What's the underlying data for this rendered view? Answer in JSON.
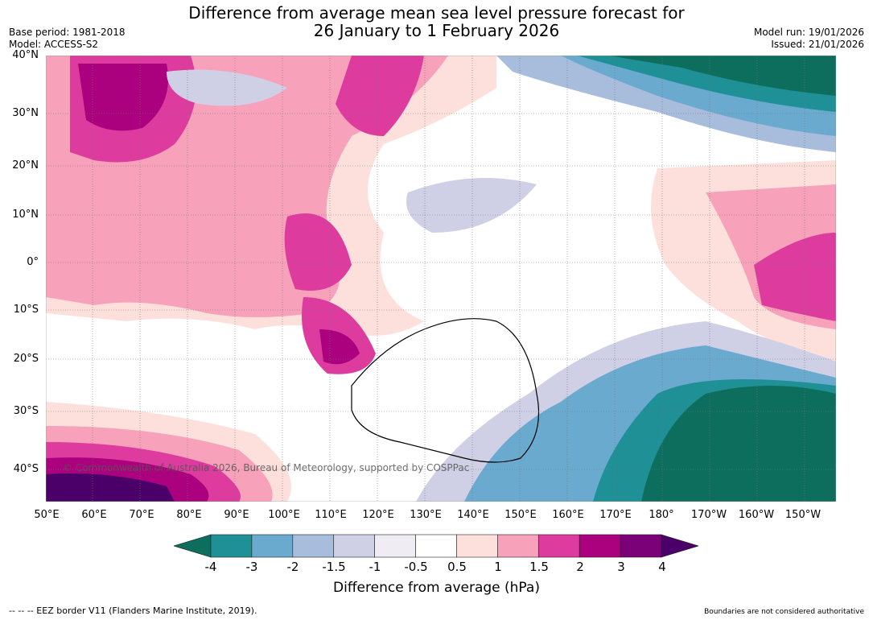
{
  "title": {
    "line1": "Difference from average mean sea level pressure forecast for",
    "line2": "26 January to 1 February 2026"
  },
  "meta": {
    "base_period": "Base period: 1981-2018",
    "model": "Model: ACCESS-S2",
    "model_run": "Model run: 19/01/2026",
    "issued": "Issued: 21/01/2026"
  },
  "map": {
    "lat_labels": [
      "40°N",
      "30°N",
      "20°N",
      "10°N",
      "0°",
      "10°S",
      "20°S",
      "30°S",
      "40°S"
    ],
    "lon_labels": [
      "50°E",
      "60°E",
      "70°E",
      "80°E",
      "90°E",
      "100°E",
      "110°E",
      "120°E",
      "130°E",
      "140°E",
      "150°E",
      "160°E",
      "170°E",
      "180°",
      "170°W",
      "160°W",
      "150°W"
    ],
    "copyright": "© Commonwealth of Australia 2026, Bureau of Meteorology, supported by COSPPac"
  },
  "colorbar": {
    "title": "Difference from average (hPa)",
    "ticks": [
      "-4",
      "-3",
      "-2",
      "-1.5",
      "-1",
      "-0.5",
      "0.5",
      "1",
      "1.5",
      "2",
      "3",
      "4"
    ],
    "colors": [
      "#0d6e5e",
      "#1f9096",
      "#6aaacf",
      "#a8bcdb",
      "#cfd0e5",
      "#efecf3",
      "#ffffff",
      "#fde0dc",
      "#f7a1ba",
      "#dd3c9e",
      "#ac017e",
      "#7a0177",
      "#4a0068"
    ]
  },
  "footer": {
    "eez": "--  --  -- EEZ border V11 (Flanders Marine Institute, 2019).",
    "boundaries": "Boundaries are not considered authoritative"
  }
}
